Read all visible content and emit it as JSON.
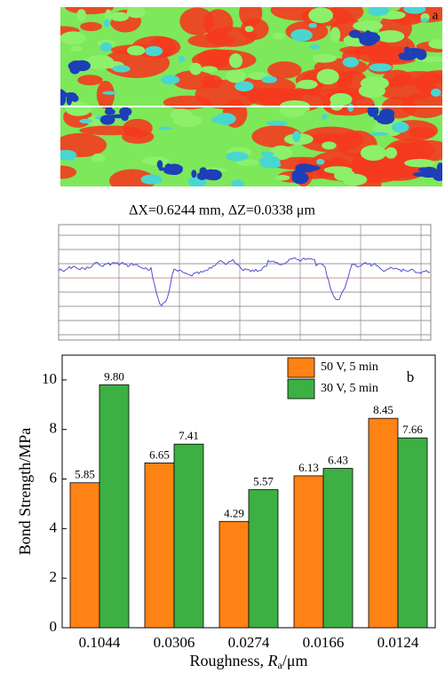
{
  "panel_a": {
    "label": "a",
    "caption": "ΔX=0.6244 mm, ΔZ=0.0338 μm"
  },
  "chart_data": {
    "type": "bar",
    "panel_label": "b",
    "ylabel": "Bond Strength/MPa",
    "xlabel": [
      "Roughness, ",
      "R",
      "a",
      "/μm"
    ],
    "categories": [
      "0.1044",
      "0.0306",
      "0.0274",
      "0.0166",
      "0.0124"
    ],
    "series": [
      {
        "name": "50 V, 5 min",
        "color": "#ff8214",
        "values": [
          5.85,
          6.65,
          4.29,
          6.13,
          8.45
        ],
        "value_labels": [
          "5.85",
          "6.65",
          "4.29",
          "6.13",
          "8.45"
        ]
      },
      {
        "name": "30 V, 5 min",
        "color": "#3cb043",
        "values": [
          9.8,
          7.41,
          5.57,
          6.43,
          7.66
        ],
        "value_labels": [
          "9.80",
          "7.41",
          "5.57",
          "6.43",
          "7.66"
        ]
      }
    ],
    "ylim": [
      0,
      11
    ],
    "yticks": [
      0,
      2,
      4,
      6,
      8,
      10
    ],
    "legend": "upper right"
  }
}
